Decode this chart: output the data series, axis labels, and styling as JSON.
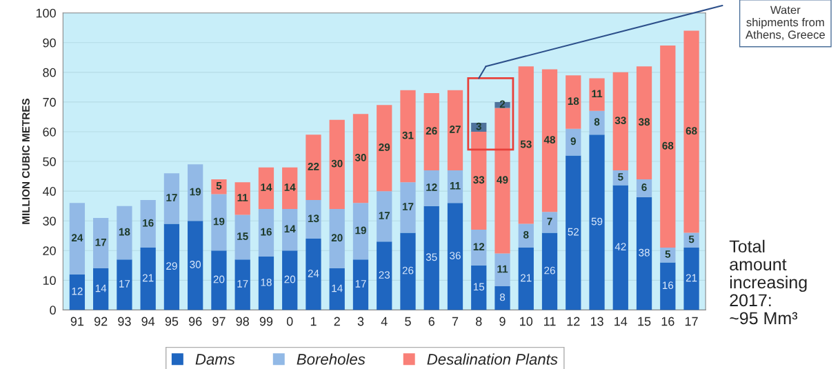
{
  "chart_data": {
    "type": "bar",
    "stacked": true,
    "ylabel": "MILLION CUBIC METRES",
    "categories": [
      "91",
      "92",
      "93",
      "94",
      "95",
      "96",
      "97",
      "98",
      "99",
      "0",
      "1",
      "2",
      "3",
      "4",
      "5",
      "6",
      "7",
      "8",
      "9",
      "10",
      "11",
      "12",
      "13",
      "14",
      "15",
      "16",
      "17"
    ],
    "series": [
      {
        "name": "Dams",
        "color": "#1f66c0",
        "values": [
          12,
          14,
          17,
          21,
          29,
          30,
          20,
          17,
          18,
          20,
          24,
          14,
          17,
          23,
          26,
          35,
          36,
          15,
          8,
          21,
          26,
          52,
          59,
          42,
          38,
          16,
          21
        ]
      },
      {
        "name": "Boreholes",
        "color": "#92b9e6",
        "values": [
          24,
          17,
          18,
          16,
          17,
          19,
          19,
          15,
          16,
          14,
          13,
          20,
          19,
          17,
          17,
          12,
          11,
          12,
          11,
          8,
          7,
          9,
          8,
          5,
          6,
          5,
          5
        ]
      },
      {
        "name": "Desalination Plants",
        "color": "#f98078",
        "values": [
          null,
          null,
          null,
          null,
          null,
          null,
          5,
          11,
          14,
          14,
          22,
          30,
          30,
          29,
          31,
          26,
          27,
          33,
          49,
          53,
          48,
          18,
          11,
          33,
          38,
          68,
          68
        ]
      },
      {
        "color": "#4f739c",
        "values": [
          null,
          null,
          null,
          null,
          null,
          null,
          null,
          null,
          null,
          null,
          null,
          null,
          null,
          null,
          null,
          null,
          null,
          3,
          2,
          null,
          null,
          null,
          null,
          null,
          null,
          null,
          null
        ]
      }
    ],
    "ylim": [
      0,
      100
    ],
    "yticks": [
      0,
      10,
      20,
      30,
      40,
      50,
      60,
      70,
      80,
      90,
      100
    ],
    "grid": "y",
    "legend": "bottom",
    "data_labels": true,
    "annotations": [
      "Water\nshipments from\nAthens, Greece",
      "Total\namount\nincreasing\n2017:\n~95 Mm³"
    ]
  }
}
